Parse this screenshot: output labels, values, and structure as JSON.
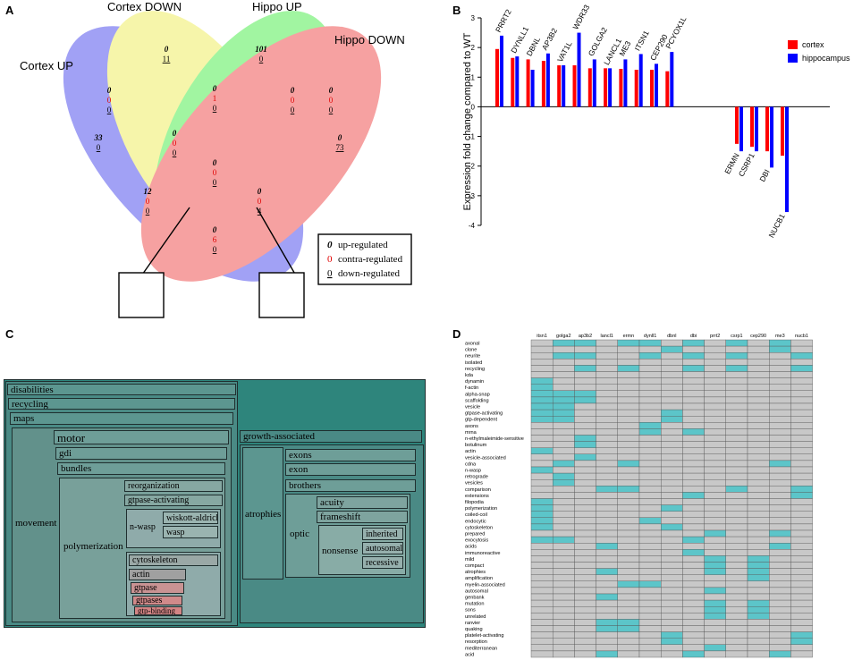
{
  "panels": {
    "a": "A",
    "b": "B",
    "c": "C",
    "d": "D"
  },
  "colors": {
    "cortex": "#ff0000",
    "hippocampus": "#0000ff",
    "teal": "#2e857c",
    "heat_on": "#5cc5c9",
    "heat_off": "#c8c8c8"
  },
  "venn": {
    "sets": [
      "Cortex UP",
      "Cortex DOWN",
      "Hippo UP",
      "Hippo DOWN"
    ],
    "regions": [
      {
        "name": "cortex-up-only",
        "up": "33",
        "down": "0"
      },
      {
        "name": "cortex-down-only",
        "up": "0",
        "down": "11"
      },
      {
        "name": "hippo-up-only",
        "up": "101",
        "down": "0"
      },
      {
        "name": "hippo-down-only",
        "up": "0",
        "down": "73"
      },
      {
        "name": "cdown-hup",
        "up": "0",
        "contra": "1",
        "down": "0"
      },
      {
        "name": "cup-cdown",
        "up": "0",
        "contra": "0",
        "down": "0"
      },
      {
        "name": "cdown-hup-hdown",
        "up": "0",
        "contra": "0",
        "down": "0"
      },
      {
        "name": "hup-hdown",
        "up": "0",
        "contra": "0",
        "down": "0"
      },
      {
        "name": "cup-cdown-hup",
        "up": "0",
        "contra": "0",
        "down": "0"
      },
      {
        "name": "center",
        "up": "0",
        "contra": "0",
        "down": "0"
      },
      {
        "name": "cup-hup",
        "up": "12",
        "contra": "0",
        "down": "0"
      },
      {
        "name": "cdown-hdown",
        "up": "0",
        "contra": "0",
        "down": "4"
      },
      {
        "name": "cup-hdown",
        "up": "0",
        "contra": "6",
        "down": "0"
      },
      {
        "name": "box-left",
        "up": "0",
        "contra": "0",
        "down": "0"
      },
      {
        "name": "box-right",
        "up": "0",
        "contra": "0",
        "down": "0"
      }
    ],
    "legend": [
      {
        "sym": "0",
        "label": "up-regulated"
      },
      {
        "sym": "0",
        "label": "contra-regulated"
      },
      {
        "sym": "0",
        "label": "down-regulated"
      }
    ]
  },
  "chart_data": {
    "type": "bar",
    "ylabel": "Expression fold change compared to WT",
    "ylim": [
      -4,
      3
    ],
    "yticks": [
      "3",
      "2",
      "1",
      "0",
      "-1",
      "-2",
      "-3",
      "-4"
    ],
    "categories": [
      "PRRT2",
      "DYNLL1",
      "DBNL",
      "AP3B2",
      "VAT1L",
      "WDR33",
      "GOLGA2",
      "LANCL1",
      "ME3",
      "ITSN1",
      "CEP290",
      "PCYOX1L",
      "ERMN",
      "CSRP1",
      "DBI",
      "NUCB1"
    ],
    "series": [
      {
        "name": "cortex",
        "values": [
          1.95,
          1.65,
          1.6,
          1.55,
          1.4,
          1.4,
          1.3,
          1.3,
          1.28,
          1.25,
          1.25,
          1.2,
          -1.25,
          -1.35,
          -1.5,
          -1.65
        ]
      },
      {
        "name": "hippocampus",
        "values": [
          2.4,
          1.7,
          1.25,
          1.8,
          1.4,
          2.5,
          1.6,
          1.3,
          1.6,
          1.78,
          1.45,
          1.85,
          -1.5,
          -1.5,
          -2.05,
          -3.55
        ]
      }
    ],
    "legend": [
      "cortex",
      "hippocampus"
    ]
  },
  "treemap": {
    "disabilities": "disabilities",
    "recycling": "recycling",
    "maps": "maps",
    "movement": "movement",
    "motor": "motor",
    "gdi": "gdi",
    "bundles": "bundles",
    "polymerization": "polymerization",
    "reorganization": "reorganization",
    "gtpase_activating": "gtpase-activating",
    "n_wasp": "n-wasp",
    "wiskott_aldrich": "wiskott-aldrich",
    "wasp": "wasp",
    "cytoskeleton": "cytoskeleton",
    "actin": "actin",
    "gtpase": "gtpase",
    "gtpases": "gtpases",
    "gtp_binding": "gtp-binding",
    "growth_associated": "growth-associated",
    "atrophies": "atrophies",
    "exons": "exons",
    "exon": "exon",
    "brothers": "brothers",
    "optic": "optic",
    "acuity": "acuity",
    "frameshift": "frameshift",
    "nonsense": "nonsense",
    "inherited": "inherited",
    "autosomal": "autosomal",
    "recessive": "recessive"
  },
  "heatmap": {
    "columns": [
      "itsn1",
      "golga2",
      "ap3b2",
      "lancl1",
      "ermn",
      "dynll1",
      "dbnl",
      "dbi",
      "prrt2",
      "csrp1",
      "cep290",
      "me3",
      "nucb1"
    ],
    "rows": [
      "axonal",
      "clone",
      "neurite",
      "isolated",
      "recycling",
      "kda",
      "dynamin",
      "f-actin",
      "alpha-snap",
      "scaffolding",
      "vesicle",
      "gtpase-activating",
      "gtp-dependent",
      "axons",
      "mrna",
      "n-ethylmaleimide-sensitive",
      "botulinum",
      "actin",
      "vesicle-associated",
      "cdna",
      "n-wasp",
      "retrograde",
      "vesicles",
      "comparison",
      "extensions",
      "filopodia",
      "polymerization",
      "coiled-coil",
      "endocytic",
      "cytoskeleton",
      "prepared",
      "exocytosis",
      "acids",
      "immunoreactive",
      "mild",
      "compact",
      "atrophies",
      "amplification",
      "myelin-associated",
      "autosomal",
      "genbank",
      "mutation",
      "sons",
      "unrelated",
      "ranvier",
      "quaking",
      "platelet-activating",
      "resorption",
      "mediterranean",
      "acid"
    ],
    "on": [
      [
        0,
        1,
        1,
        0,
        1,
        1,
        0,
        1,
        0,
        1,
        0,
        1,
        0
      ],
      [
        0,
        0,
        0,
        0,
        0,
        0,
        1,
        0,
        0,
        0,
        0,
        1,
        0
      ],
      [
        0,
        1,
        1,
        0,
        0,
        1,
        0,
        1,
        0,
        1,
        0,
        0,
        1
      ],
      [
        0,
        0,
        0,
        0,
        0,
        0,
        0,
        0,
        0,
        0,
        0,
        0,
        0
      ],
      [
        0,
        0,
        1,
        0,
        1,
        0,
        0,
        1,
        0,
        1,
        0,
        0,
        1
      ],
      [
        0,
        0,
        0,
        0,
        0,
        0,
        0,
        0,
        0,
        0,
        0,
        0,
        0
      ],
      [
        1,
        0,
        0,
        0,
        0,
        0,
        0,
        0,
        0,
        0,
        0,
        0,
        0
      ],
      [
        1,
        0,
        0,
        0,
        0,
        0,
        0,
        0,
        0,
        0,
        0,
        0,
        0
      ],
      [
        1,
        1,
        1,
        0,
        0,
        0,
        0,
        0,
        0,
        0,
        0,
        0,
        0
      ],
      [
        1,
        1,
        1,
        0,
        0,
        0,
        0,
        0,
        0,
        0,
        0,
        0,
        0
      ],
      [
        1,
        1,
        0,
        0,
        0,
        0,
        0,
        0,
        0,
        0,
        0,
        0,
        0
      ],
      [
        1,
        1,
        0,
        0,
        0,
        0,
        1,
        0,
        0,
        0,
        0,
        0,
        0
      ],
      [
        1,
        1,
        0,
        0,
        0,
        0,
        1,
        0,
        0,
        0,
        0,
        0,
        0
      ],
      [
        0,
        0,
        0,
        0,
        0,
        1,
        0,
        0,
        0,
        0,
        0,
        0,
        0
      ],
      [
        0,
        0,
        0,
        0,
        0,
        1,
        0,
        1,
        0,
        0,
        0,
        0,
        0
      ],
      [
        0,
        0,
        1,
        0,
        0,
        0,
        0,
        0,
        0,
        0,
        0,
        0,
        0
      ],
      [
        0,
        0,
        1,
        0,
        0,
        0,
        0,
        0,
        0,
        0,
        0,
        0,
        0
      ],
      [
        1,
        0,
        0,
        0,
        0,
        0,
        0,
        0,
        0,
        0,
        0,
        0,
        0
      ],
      [
        0,
        0,
        1,
        0,
        0,
        0,
        0,
        0,
        0,
        0,
        0,
        0,
        0
      ],
      [
        0,
        1,
        0,
        0,
        1,
        0,
        0,
        0,
        0,
        0,
        0,
        1,
        0
      ],
      [
        1,
        0,
        0,
        0,
        0,
        0,
        0,
        0,
        0,
        0,
        0,
        0,
        0
      ],
      [
        0,
        1,
        0,
        0,
        0,
        0,
        0,
        0,
        0,
        0,
        0,
        0,
        0
      ],
      [
        0,
        1,
        0,
        0,
        0,
        0,
        0,
        0,
        0,
        0,
        0,
        0,
        0
      ],
      [
        0,
        0,
        0,
        1,
        1,
        0,
        0,
        0,
        0,
        1,
        0,
        0,
        1
      ],
      [
        0,
        0,
        0,
        0,
        0,
        0,
        0,
        1,
        0,
        0,
        0,
        0,
        1
      ],
      [
        1,
        0,
        0,
        0,
        0,
        0,
        0,
        0,
        0,
        0,
        0,
        0,
        0
      ],
      [
        1,
        0,
        0,
        0,
        0,
        0,
        1,
        0,
        0,
        0,
        0,
        0,
        0
      ],
      [
        1,
        0,
        0,
        0,
        0,
        0,
        0,
        0,
        0,
        0,
        0,
        0,
        0
      ],
      [
        1,
        0,
        0,
        0,
        0,
        1,
        0,
        0,
        0,
        0,
        0,
        0,
        0
      ],
      [
        1,
        0,
        0,
        0,
        0,
        0,
        1,
        0,
        0,
        0,
        0,
        0,
        0
      ],
      [
        0,
        0,
        0,
        0,
        0,
        0,
        0,
        0,
        1,
        0,
        0,
        1,
        0
      ],
      [
        1,
        1,
        0,
        0,
        0,
        0,
        0,
        1,
        0,
        0,
        0,
        0,
        0
      ],
      [
        0,
        0,
        0,
        1,
        0,
        0,
        0,
        0,
        0,
        0,
        0,
        1,
        0
      ],
      [
        0,
        0,
        0,
        0,
        0,
        0,
        0,
        1,
        0,
        0,
        0,
        0,
        0
      ],
      [
        0,
        0,
        0,
        0,
        0,
        0,
        0,
        0,
        1,
        0,
        1,
        0,
        0
      ],
      [
        0,
        0,
        0,
        0,
        0,
        0,
        0,
        0,
        1,
        0,
        1,
        0,
        0
      ],
      [
        0,
        0,
        0,
        1,
        0,
        0,
        0,
        0,
        1,
        0,
        1,
        0,
        0
      ],
      [
        0,
        0,
        0,
        0,
        0,
        0,
        0,
        0,
        0,
        0,
        1,
        0,
        0
      ],
      [
        0,
        0,
        0,
        0,
        1,
        1,
        0,
        0,
        0,
        0,
        0,
        0,
        0
      ],
      [
        0,
        0,
        0,
        0,
        0,
        0,
        0,
        0,
        1,
        0,
        0,
        0,
        0
      ],
      [
        0,
        0,
        0,
        1,
        0,
        0,
        0,
        0,
        0,
        0,
        0,
        0,
        0
      ],
      [
        0,
        0,
        0,
        0,
        0,
        0,
        0,
        0,
        1,
        0,
        1,
        0,
        0
      ],
      [
        0,
        0,
        0,
        0,
        0,
        0,
        0,
        0,
        1,
        0,
        1,
        0,
        0
      ],
      [
        0,
        0,
        0,
        0,
        0,
        0,
        0,
        0,
        1,
        0,
        1,
        0,
        0
      ],
      [
        0,
        0,
        0,
        1,
        1,
        0,
        0,
        0,
        0,
        0,
        0,
        0,
        0
      ],
      [
        0,
        0,
        0,
        1,
        1,
        0,
        0,
        0,
        0,
        0,
        0,
        0,
        0
      ],
      [
        0,
        0,
        0,
        0,
        0,
        0,
        1,
        0,
        0,
        0,
        0,
        0,
        1
      ],
      [
        0,
        0,
        0,
        0,
        0,
        0,
        1,
        0,
        0,
        0,
        0,
        0,
        1
      ],
      [
        0,
        0,
        0,
        0,
        0,
        0,
        0,
        0,
        1,
        0,
        0,
        0,
        0
      ],
      [
        0,
        0,
        0,
        1,
        0,
        0,
        0,
        1,
        0,
        0,
        0,
        1,
        0
      ]
    ]
  }
}
